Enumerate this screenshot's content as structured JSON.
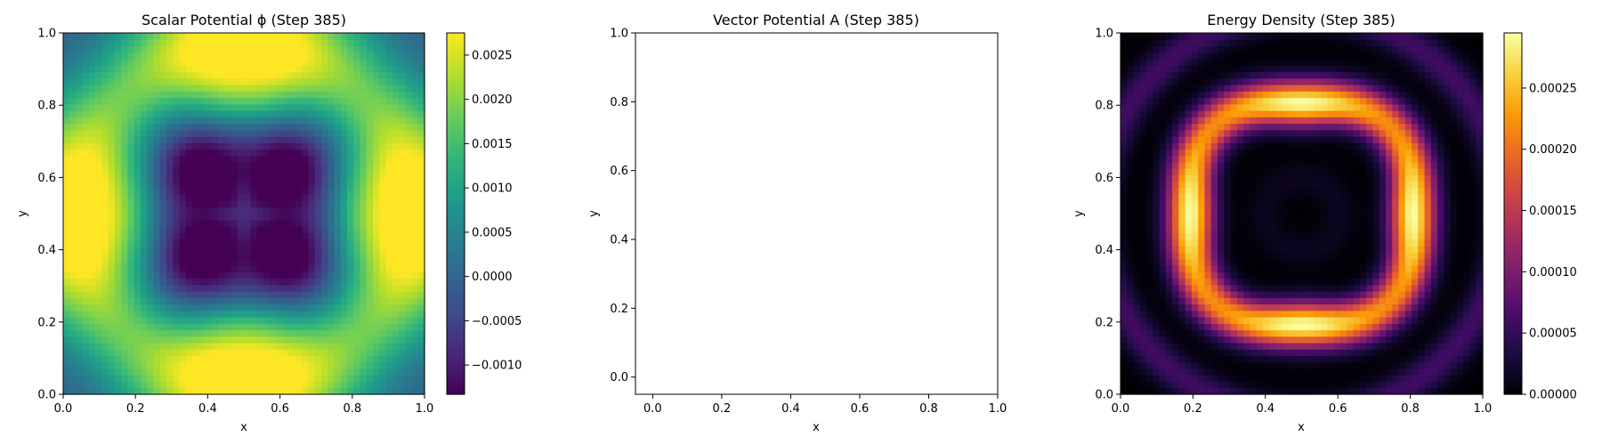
{
  "chart_data": [
    {
      "type": "heatmap",
      "title": "Scalar Potential ϕ (Step 385)",
      "xlabel": "x",
      "ylabel": "y",
      "xlim": [
        0.0,
        1.0
      ],
      "ylim": [
        0.0,
        1.0
      ],
      "xticks": [
        "0.0",
        "0.2",
        "0.4",
        "0.6",
        "0.8",
        "1.0"
      ],
      "yticks": [
        "0.0",
        "0.2",
        "0.4",
        "0.6",
        "0.8",
        "1.0"
      ],
      "colormap": "viridis",
      "colorbar": {
        "range": [
          -0.00133,
          0.00275
        ],
        "ticks": [
          -0.001,
          -0.0005,
          0.0,
          0.0005,
          0.001,
          0.0015,
          0.002,
          0.0025
        ],
        "tick_labels": [
          "−0.0010",
          "−0.0005",
          "0.0000",
          "0.0005",
          "0.0010",
          "0.0015",
          "0.0020",
          "0.0025"
        ]
      },
      "field": "phi"
    },
    {
      "type": "scatter",
      "title": "Vector Potential A (Step 385)",
      "xlabel": "x",
      "ylabel": "y",
      "xlim": [
        -0.05,
        1.0
      ],
      "ylim": [
        -0.05,
        1.0
      ],
      "xticks": [
        "0.0",
        "0.2",
        "0.4",
        "0.6",
        "0.8",
        "1.0"
      ],
      "yticks": [
        "0.0",
        "0.2",
        "0.4",
        "0.6",
        "0.8",
        "1.0"
      ],
      "series": []
    },
    {
      "type": "heatmap",
      "title": "Energy Density (Step 385)",
      "xlabel": "x",
      "ylabel": "y",
      "xlim": [
        0.0,
        1.0
      ],
      "ylim": [
        0.0,
        1.0
      ],
      "xticks": [
        "0.0",
        "0.2",
        "0.4",
        "0.6",
        "0.8",
        "1.0"
      ],
      "yticks": [
        "0.0",
        "0.2",
        "0.4",
        "0.6",
        "0.8",
        "1.0"
      ],
      "colormap": "inferno",
      "colorbar": {
        "range": [
          0.0,
          0.000295
        ],
        "ticks": [
          0.0,
          5e-05,
          0.0001,
          0.00015,
          0.0002,
          0.00025
        ],
        "tick_labels": [
          "0.00000",
          "0.00005",
          "0.00010",
          "0.00015",
          "0.00020",
          "0.00025"
        ]
      },
      "field": "energy"
    }
  ]
}
